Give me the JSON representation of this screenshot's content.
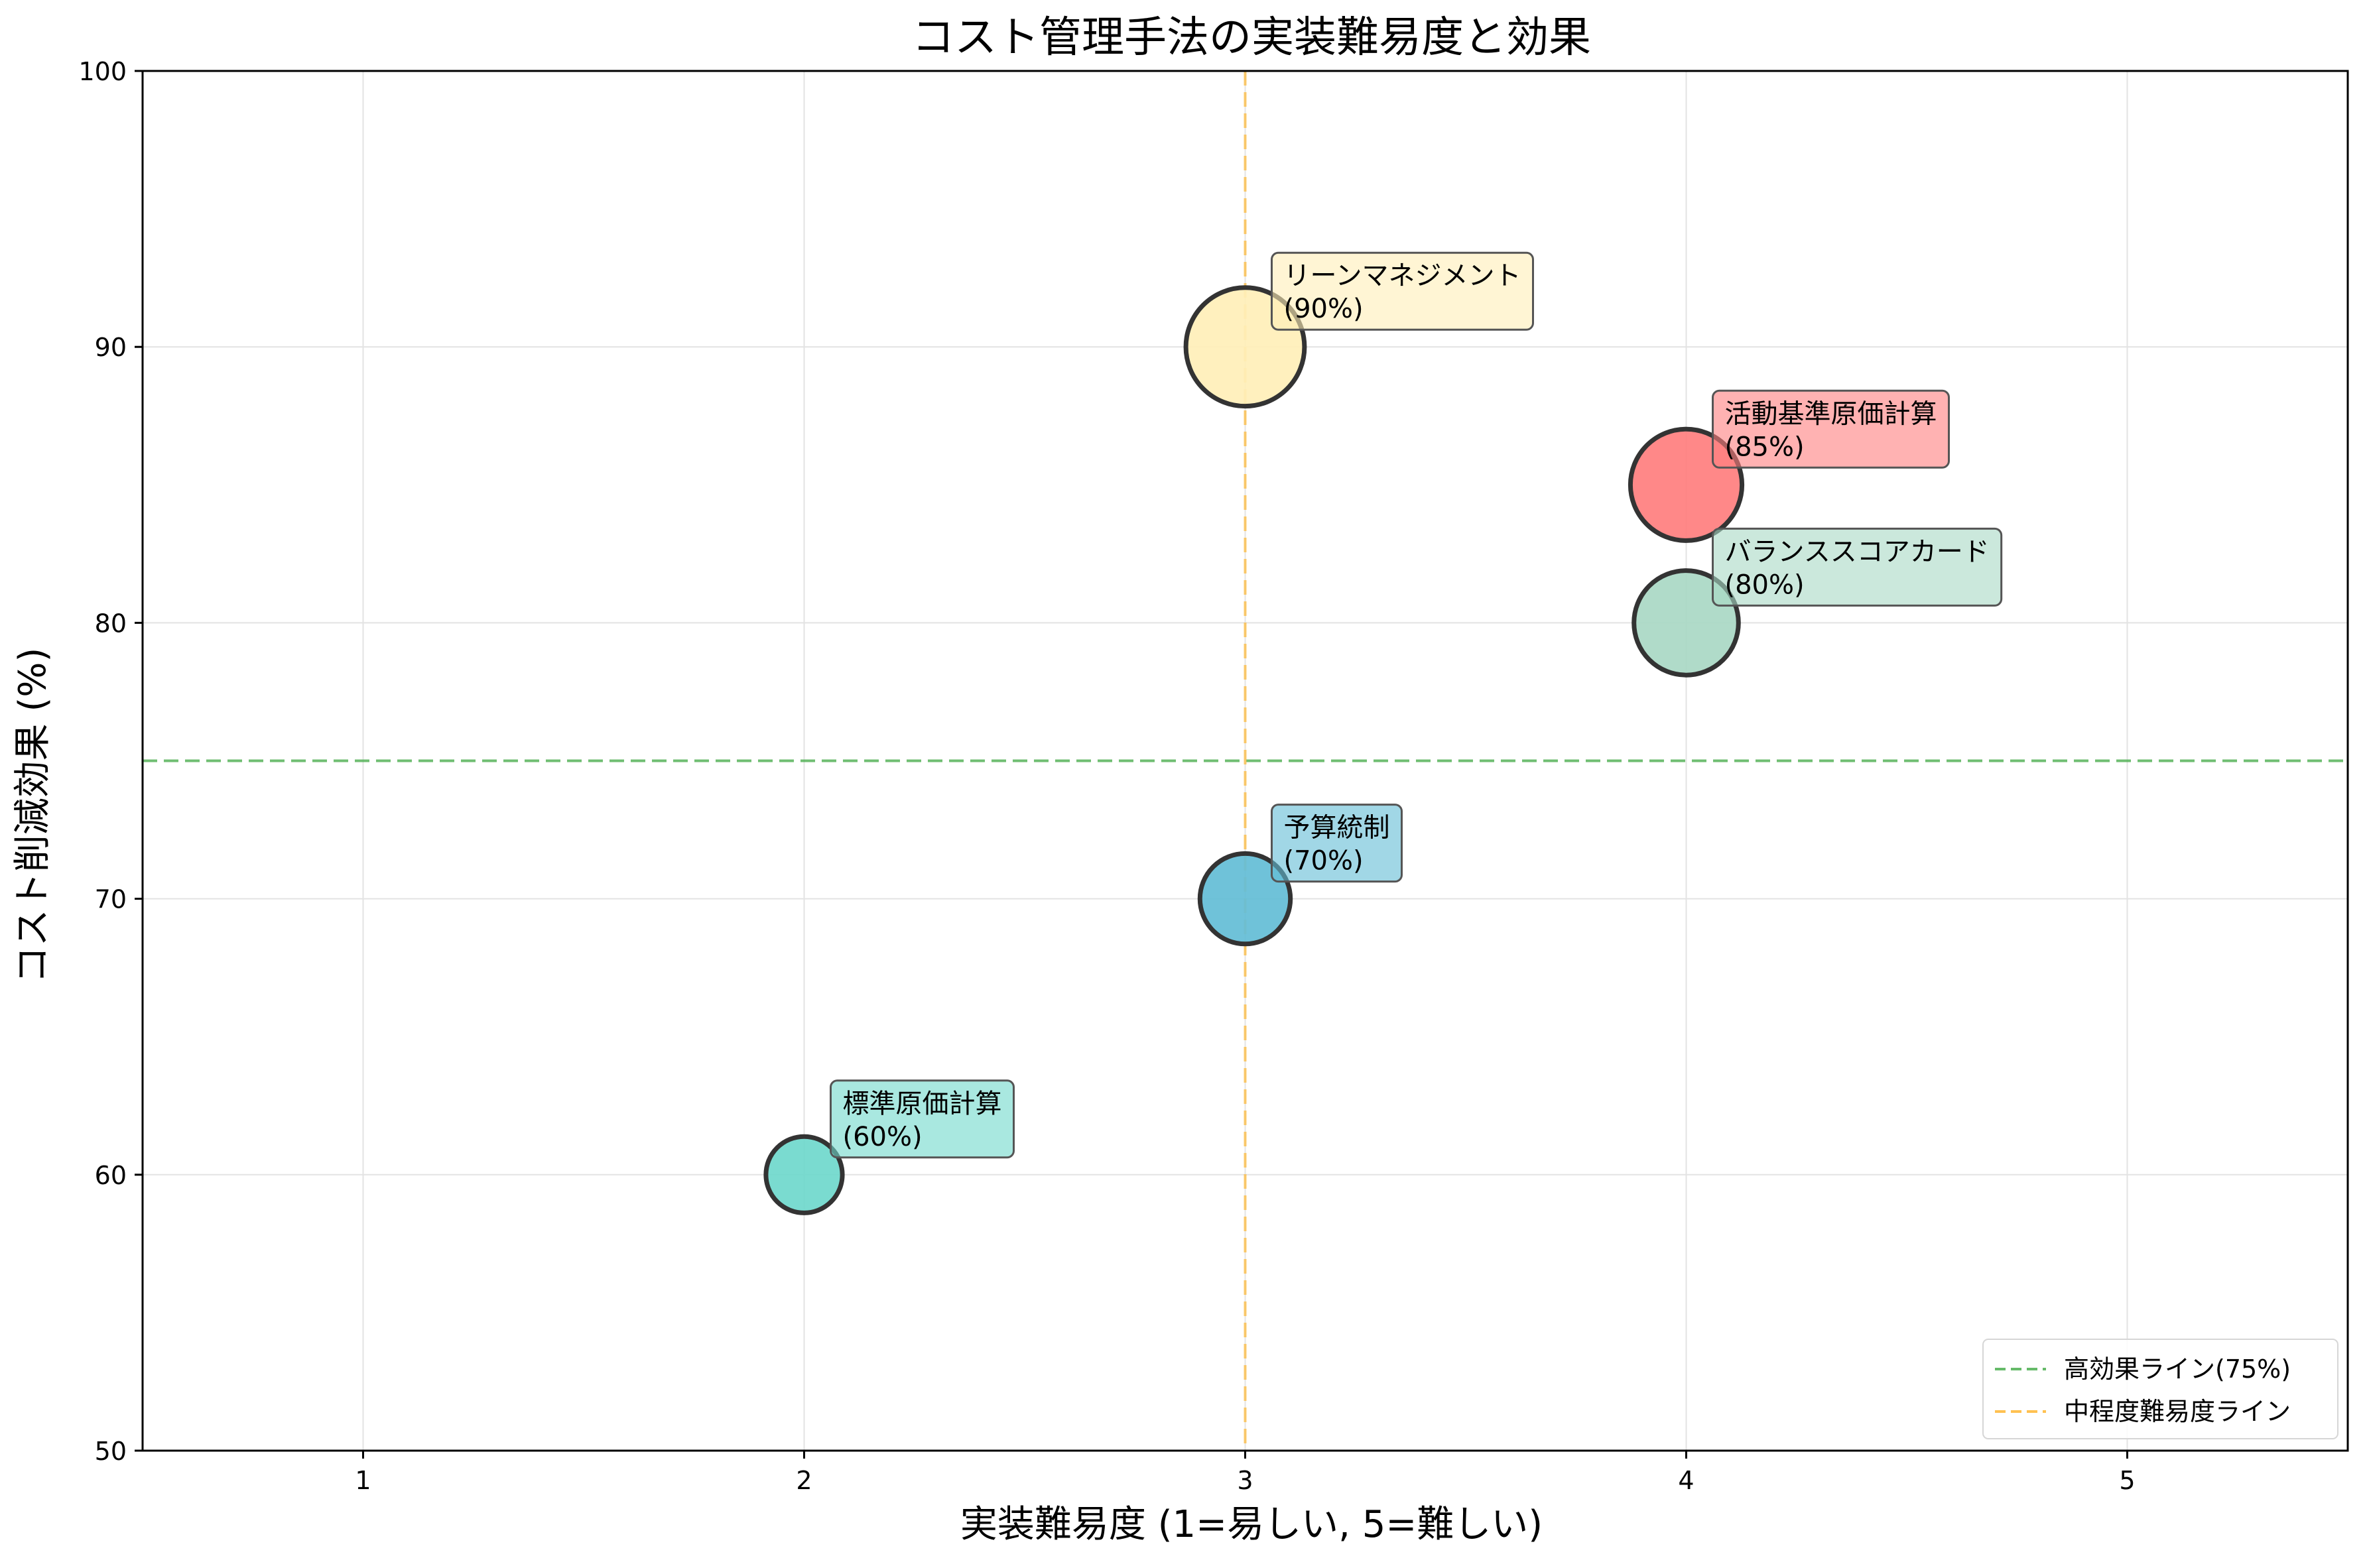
{
  "chart_data": {
    "type": "scatter",
    "title": "コスト管理手法の実装難易度と効果",
    "xlabel": "実装難易度 (1=易しい, 5=難しい)",
    "ylabel": "コスト削減効果 (%)",
    "xlim": [
      0.5,
      5.5
    ],
    "ylim": [
      50,
      100
    ],
    "xticks": [
      1,
      2,
      3,
      4,
      5
    ],
    "yticks": [
      50,
      60,
      70,
      80,
      90,
      100
    ],
    "grid": true,
    "legend_position": "bottom-right",
    "points": [
      {
        "name": "標準原価計算",
        "label": "(60%)",
        "x": 2,
        "y": 60,
        "color": "#6fd8cc"
      },
      {
        "name": "予算統制",
        "label": "(70%)",
        "x": 3,
        "y": 70,
        "color": "#63bdd6"
      },
      {
        "name": "活動基準原価計算",
        "label": "(85%)",
        "x": 4,
        "y": 85,
        "color": "#ff7e7e"
      },
      {
        "name": "バランススコアカード",
        "label": "(80%)",
        "x": 4,
        "y": 80,
        "color": "#a9d8c4"
      },
      {
        "name": "リーンマネジメント",
        "label": "(90%)",
        "x": 3,
        "y": 90,
        "color": "#ffefb8"
      }
    ],
    "reference_lines": [
      {
        "orientation": "horizontal",
        "value": 75,
        "label": "高効果ライン(75%)",
        "color": "#4caf50"
      },
      {
        "orientation": "vertical",
        "value": 3,
        "label": "中程度難易度ライン",
        "color": "#ffb733"
      }
    ]
  }
}
